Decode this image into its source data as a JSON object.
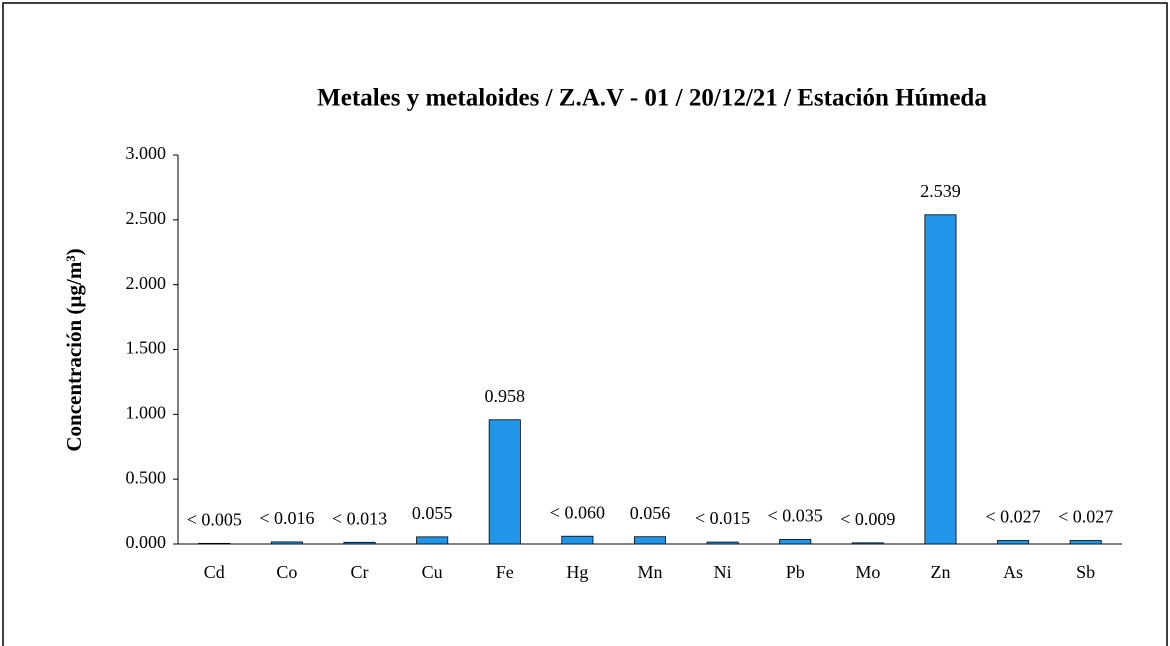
{
  "chart_data": {
    "type": "bar",
    "title": "Metales y metaloides / Z.A.V  - 01 / 20/12/21 / Estación Húmeda",
    "y_label": "Concentración (µg/m³)",
    "categories": [
      "Cd",
      "Co",
      "Cr",
      "Cu",
      "Fe",
      "Hg",
      "Mn",
      "Ni",
      "Pb",
      "Mo",
      "Zn",
      "As",
      "Sb"
    ],
    "values": [
      0.005,
      0.016,
      0.013,
      0.055,
      0.958,
      0.06,
      0.056,
      0.015,
      0.035,
      0.009,
      2.539,
      0.027,
      0.027
    ],
    "value_labels": [
      "< 0.005",
      "< 0.016",
      "< 0.013",
      "0.055",
      "0.958",
      "< 0.060",
      "0.056",
      "< 0.015",
      "< 0.035",
      "< 0.009",
      "2.539",
      "< 0.027",
      "< 0.027"
    ],
    "color": "#2196e8",
    "ylim": [
      0,
      3
    ],
    "yticks": [
      {
        "value": 0,
        "label": "0.000"
      },
      {
        "value": 0.5,
        "label": "0.500"
      },
      {
        "value": 1,
        "label": "1.000"
      },
      {
        "value": 1.5,
        "label": "1.500"
      },
      {
        "value": 2,
        "label": "2.000"
      },
      {
        "value": 2.5,
        "label": "2.500"
      },
      {
        "value": 3,
        "label": "3.000"
      }
    ],
    "grid": false
  }
}
